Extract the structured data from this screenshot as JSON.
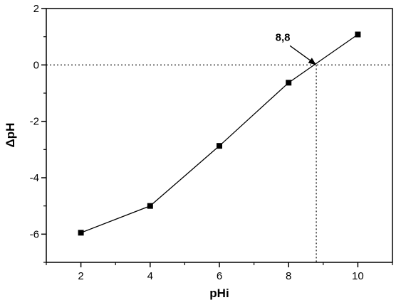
{
  "chart_data": {
    "type": "line",
    "title": "",
    "xlabel": "pHi",
    "ylabel": "ΔpH",
    "xlim": [
      1,
      11
    ],
    "ylim": [
      -7,
      2
    ],
    "xticks": [
      2,
      4,
      6,
      8,
      10
    ],
    "xtick_labels": [
      "2",
      "4",
      "6",
      "8",
      "10"
    ],
    "yticks": [
      -6,
      -4,
      -2,
      0,
      2
    ],
    "ytick_labels": [
      "-6",
      "-4",
      "-2",
      "0",
      "2"
    ],
    "grid": false,
    "legend": "none",
    "series": [
      {
        "x": [
          2,
          4,
          6,
          8,
          10
        ],
        "y": [
          -5.95,
          -5.0,
          -2.87,
          -0.63,
          1.08
        ]
      }
    ],
    "reference_lines": [
      {
        "orientation": "horizontal",
        "y": 0,
        "style": "dotted"
      },
      {
        "orientation": "vertical",
        "x": 8.8,
        "style": "dotted"
      }
    ],
    "annotations": [
      {
        "text": "8,8",
        "point_to": [
          8.8,
          0
        ]
      }
    ],
    "colors": {
      "line": "#000000",
      "marker": "#000000"
    }
  }
}
